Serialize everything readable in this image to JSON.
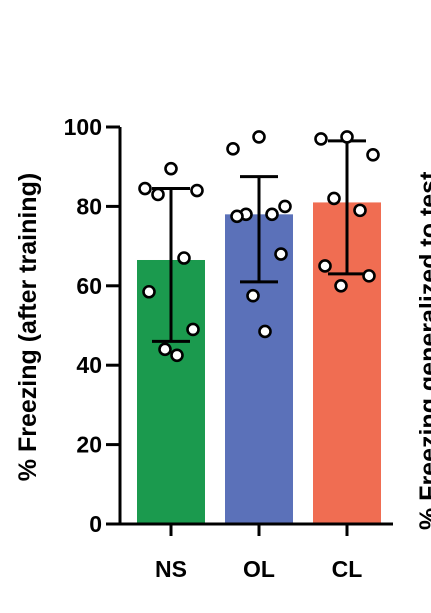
{
  "chart_data": {
    "type": "bar",
    "ylabel": "% Freezing (after training)",
    "ylim": [
      0,
      100
    ],
    "yticks": [
      0,
      20,
      40,
      60,
      80,
      100
    ],
    "categories": [
      "NS",
      "OL",
      "CL"
    ],
    "colors": [
      "#1b9a4e",
      "#5b71b9",
      "#f06d52"
    ],
    "values": [
      66.5,
      78,
      81
    ],
    "error": [
      {
        "low": 46,
        "high": 84.5
      },
      {
        "low": 61,
        "high": 87.5
      },
      {
        "low": 63,
        "high": 96.5
      }
    ],
    "points": [
      [
        89.5,
        84.5,
        84,
        83,
        67,
        58.5,
        49,
        44,
        42.5
      ],
      [
        97.5,
        94.5,
        80,
        78,
        78,
        77.5,
        68,
        57.5,
        48.5
      ],
      [
        97.5,
        97,
        93,
        82,
        79,
        65,
        62.5,
        60
      ]
    ],
    "grid": false,
    "legend": "none",
    "clipped_adjacent_label": "% Freezing generalized to test"
  }
}
